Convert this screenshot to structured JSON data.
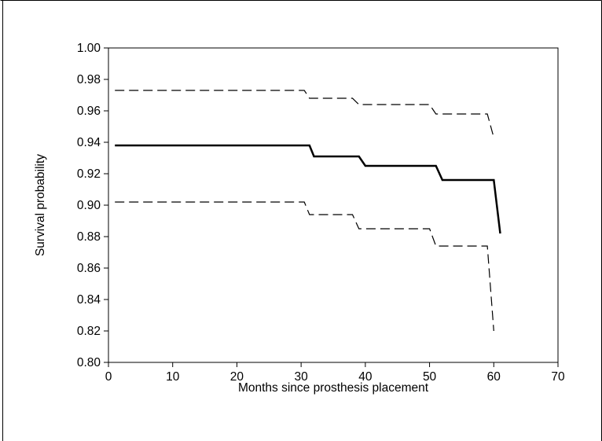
{
  "chart_data": {
    "type": "line",
    "title": "",
    "xlabel": "Months since prosthesis placement",
    "ylabel": "Survival probability",
    "xlim": [
      0,
      70
    ],
    "ylim": [
      0.8,
      1.0
    ],
    "x_ticks": [
      0,
      10,
      20,
      30,
      40,
      50,
      60,
      70
    ],
    "x_tick_labels": [
      "0",
      "10",
      "20",
      "30",
      "40",
      "50",
      "60",
      "70"
    ],
    "y_ticks": [
      0.8,
      0.82,
      0.84,
      0.86,
      0.88,
      0.9,
      0.92,
      0.94,
      0.96,
      0.98,
      1.0
    ],
    "y_tick_labels": [
      "0.80",
      "0.82",
      "0.84",
      "0.86",
      "0.88",
      "0.90",
      "0.92",
      "0.94",
      "0.96",
      "0.98",
      "1.00"
    ],
    "grid": false,
    "legend": "none",
    "series": [
      {
        "style": "solid",
        "color": "#000000",
        "x": [
          1,
          31.3,
          32,
          39,
          40,
          51,
          52,
          60,
          61
        ],
        "y": [
          0.938,
          0.938,
          0.931,
          0.931,
          0.925,
          0.925,
          0.916,
          0.916,
          0.882
        ]
      },
      {
        "style": "dashed",
        "color": "#000000",
        "x": [
          1,
          30.5,
          31.3,
          38,
          39,
          50,
          51,
          59,
          60
        ],
        "y": [
          0.973,
          0.973,
          0.968,
          0.968,
          0.964,
          0.964,
          0.958,
          0.958,
          0.943
        ]
      },
      {
        "style": "dashed",
        "color": "#000000",
        "x": [
          1,
          30.5,
          31.3,
          38,
          39,
          50,
          51,
          59,
          60
        ],
        "y": [
          0.902,
          0.902,
          0.894,
          0.894,
          0.885,
          0.885,
          0.874,
          0.874,
          0.82
        ]
      }
    ]
  }
}
